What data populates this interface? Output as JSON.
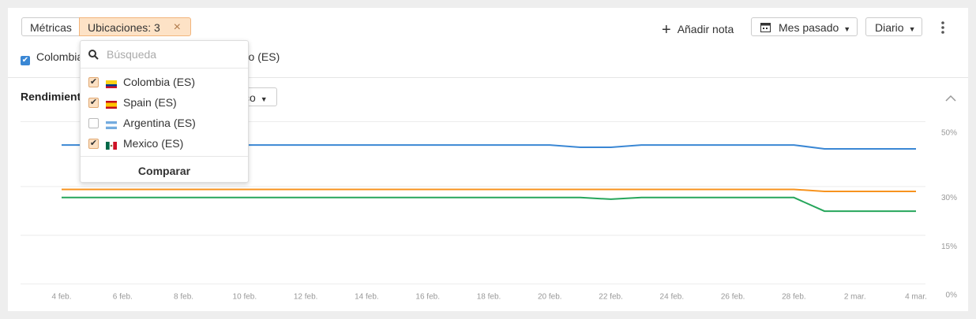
{
  "toolbar": {
    "metrics": "Métricas",
    "locations": "Ubicaciones: 3",
    "add_note": "Añadir nota",
    "period": "Mes pasado",
    "interval": "Diario"
  },
  "dropdown": {
    "search_placeholder": "Búsqueda",
    "items": [
      {
        "label": "Colombia (ES)",
        "checked": true
      },
      {
        "label": "Spain (ES)",
        "checked": true
      },
      {
        "label": "Argentina (ES)",
        "checked": false
      },
      {
        "label": "Mexico (ES)",
        "checked": true
      }
    ],
    "compare": "Comparar"
  },
  "section": {
    "title": "Rendimiento",
    "filter": "co"
  },
  "chart_data": {
    "type": "line",
    "categories": [
      "4 feb.",
      null,
      "6 feb.",
      null,
      "8 feb.",
      null,
      "10 feb.",
      null,
      "12 feb.",
      null,
      "14 feb.",
      null,
      "16 feb.",
      null,
      "18 feb.",
      null,
      "20 feb.",
      null,
      "22 feb.",
      null,
      "24 feb.",
      null,
      "26 feb.",
      null,
      "28 feb.",
      null,
      "2 mar.",
      null,
      "4 mar."
    ],
    "series": [
      {
        "name": "Colombia (ES)",
        "color": "#3a87d4",
        "checked": true,
        "values": [
          42.7,
          42.7,
          42.7,
          42.7,
          42.7,
          42.7,
          42.7,
          42.7,
          42.7,
          42.7,
          42.7,
          42.7,
          42.7,
          42.7,
          42.7,
          42.7,
          42.7,
          42,
          42,
          42.7,
          42.7,
          42.7,
          42.7,
          42.7,
          42.7,
          41.5,
          41.5,
          41.5,
          41.5
        ]
      },
      {
        "name": "Spain (ES)",
        "color": "#f7931e",
        "checked": false,
        "values": [
          29,
          29,
          29,
          29,
          29,
          29,
          29,
          29,
          29,
          29,
          29,
          29,
          29,
          29,
          29,
          29,
          29,
          29,
          29,
          29,
          29,
          29,
          29,
          29,
          29,
          28.4,
          28.4,
          28.4,
          28.4
        ]
      },
      {
        "name": "Mexico (ES)",
        "color": "#26a65b",
        "checked": false,
        "values": [
          26.5,
          26.5,
          26.5,
          26.5,
          26.5,
          26.5,
          26.5,
          26.5,
          26.5,
          26.5,
          26.5,
          26.5,
          26.5,
          26.5,
          26.5,
          26.5,
          26.5,
          26.5,
          26,
          26.5,
          26.5,
          26.5,
          26.5,
          26.5,
          26.5,
          22.3,
          22.3,
          22.3,
          22.3
        ]
      }
    ],
    "ylim": [
      0,
      50
    ],
    "yticks": [
      {
        "value": 0,
        "label": "0%"
      },
      {
        "value": 15,
        "label": "15%"
      },
      {
        "value": 30,
        "label": "30%"
      },
      {
        "value": 50,
        "label": "50%"
      }
    ],
    "grid": true
  }
}
